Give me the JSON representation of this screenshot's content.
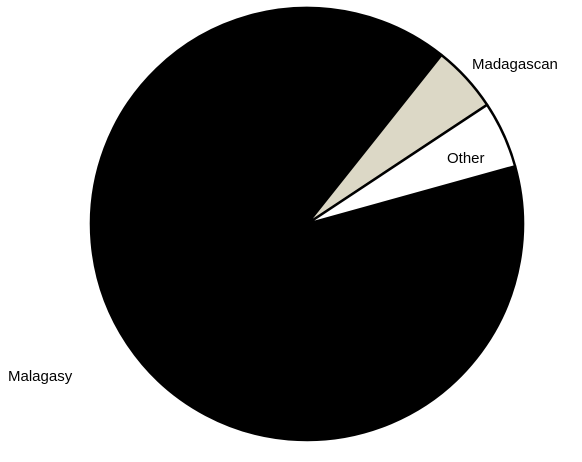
{
  "chart_data": {
    "type": "pie",
    "title": "",
    "categories": [
      "Malagasy",
      "Madagascan",
      "Other"
    ],
    "values": [
      90,
      5,
      5
    ],
    "colors": [
      "#000000",
      "#dcd8c6",
      "#ffffff"
    ],
    "label_colors": [
      "#000000",
      "#000000",
      "#000000"
    ],
    "stroke_color": "#000000",
    "legend": "none"
  }
}
